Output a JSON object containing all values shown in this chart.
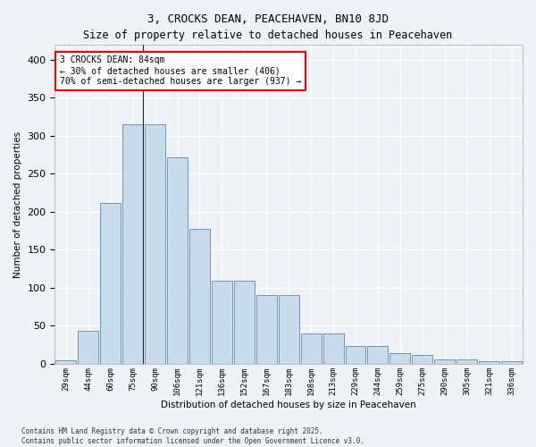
{
  "title": "3, CROCKS DEAN, PEACEHAVEN, BN10 8JD",
  "subtitle": "Size of property relative to detached houses in Peacehaven",
  "xlabel": "Distribution of detached houses by size in Peacehaven",
  "ylabel": "Number of detached properties",
  "bar_color": "#c9daea",
  "bar_edge_color": "#5b8db8",
  "categories": [
    "29sqm",
    "44sqm",
    "60sqm",
    "75sqm",
    "90sqm",
    "106sqm",
    "121sqm",
    "136sqm",
    "152sqm",
    "167sqm",
    "183sqm",
    "198sqm",
    "213sqm",
    "229sqm",
    "244sqm",
    "259sqm",
    "275sqm",
    "290sqm",
    "305sqm",
    "321sqm",
    "336sqm"
  ],
  "values": [
    5,
    44,
    212,
    315,
    315,
    272,
    178,
    109,
    109,
    91,
    91,
    40,
    40,
    24,
    24,
    14,
    12,
    6,
    6,
    3,
    3
  ],
  "ylim": [
    0,
    420
  ],
  "yticks": [
    0,
    50,
    100,
    150,
    200,
    250,
    300,
    350,
    400
  ],
  "annotation_text": "3 CROCKS DEAN: 84sqm\n← 30% of detached houses are smaller (406)\n70% of semi-detached houses are larger (937) →",
  "vline_x_index": 3.45,
  "footer_line1": "Contains HM Land Registry data © Crown copyright and database right 2025.",
  "footer_line2": "Contains public sector information licensed under the Open Government Licence v3.0.",
  "background_color": "#eef2f7",
  "grid_color": "#ffffff",
  "title_fontsize": 9,
  "subtitle_fontsize": 8.5
}
